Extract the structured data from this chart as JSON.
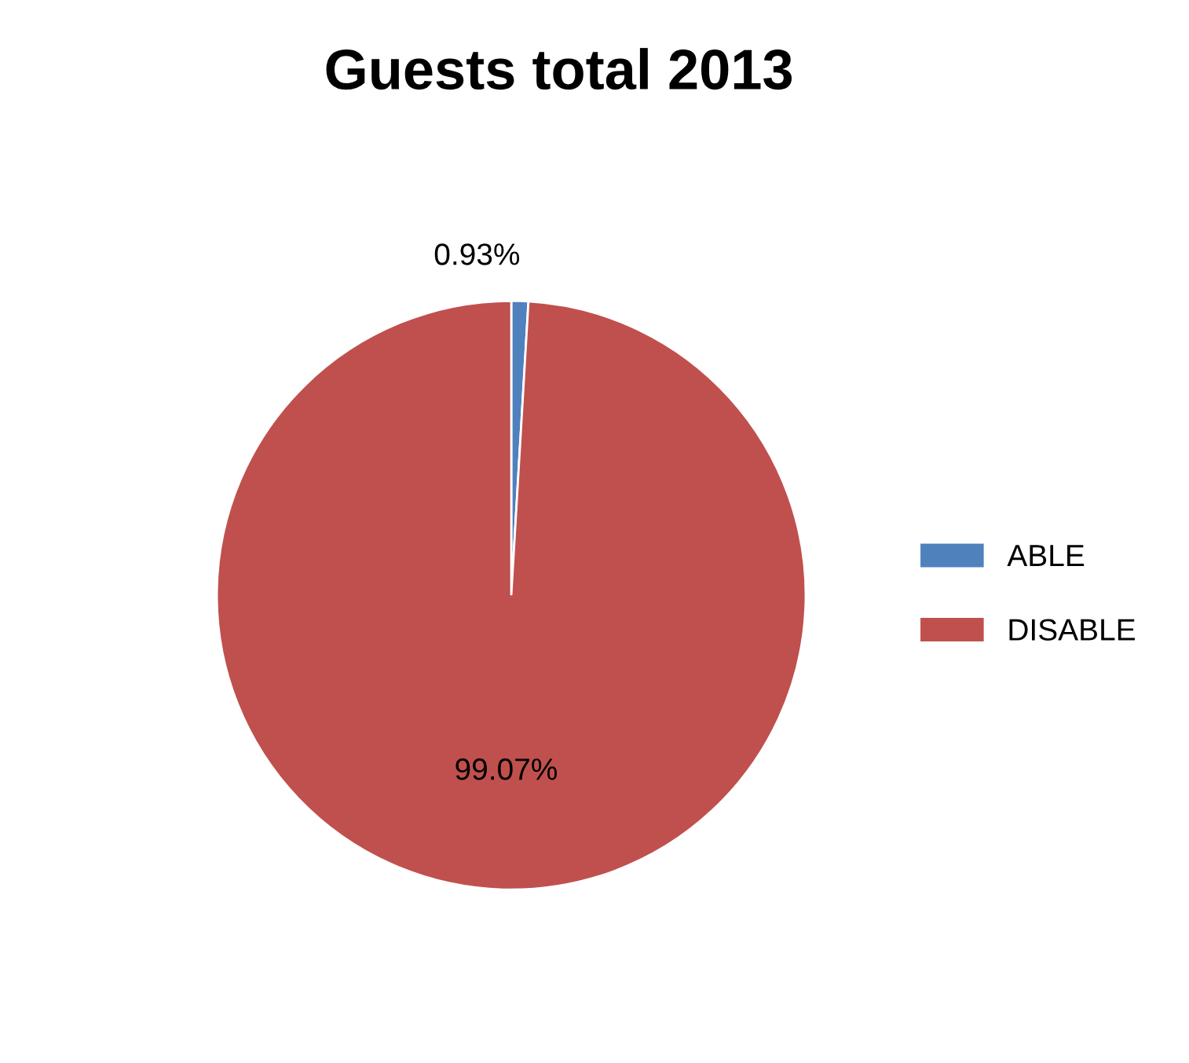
{
  "chart_data": {
    "type": "pie",
    "title": "Guests total 2013",
    "categories": [
      "ABLE",
      "DISABLE"
    ],
    "values": [
      0.93,
      99.07
    ],
    "colors": [
      "#4f81bd",
      "#c0504d"
    ],
    "value_labels": [
      "0.93%",
      "99.07%"
    ],
    "legend": "right"
  }
}
